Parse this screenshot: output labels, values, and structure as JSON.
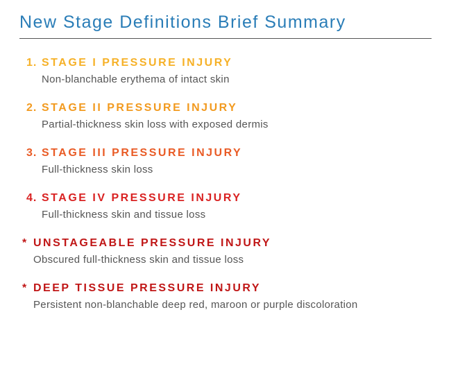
{
  "title": "New Stage Definitions Brief Summary",
  "title_color": "#2a7db7",
  "hr_color": "#555555",
  "desc_color": "#555555",
  "items": [
    {
      "marker": "1.",
      "title": "STAGE I PRESSURE INJURY",
      "color": "#f6b128",
      "desc": "Non-blanchable erythema of intact skin",
      "special": false
    },
    {
      "marker": "2.",
      "title": "STAGE II PRESSURE INJURY",
      "color": "#f29a1f",
      "desc": "Partial-thickness skin loss with exposed dermis",
      "special": false
    },
    {
      "marker": "3.",
      "title": "STAGE III PRESSURE INJURY",
      "color": "#e95b25",
      "desc": "Full-thickness skin loss",
      "special": false
    },
    {
      "marker": "4.",
      "title": "STAGE IV PRESSURE INJURY",
      "color": "#d92222",
      "desc": "Full-thickness skin and tissue loss",
      "special": false
    },
    {
      "marker": "*",
      "title": "UNSTAGEABLE PRESSURE INJURY",
      "color": "#c01616",
      "desc": "Obscured full-thickness skin and tissue loss",
      "special": true
    },
    {
      "marker": "*",
      "title": "DEEP TISSUE PRESSURE INJURY",
      "color": "#c01616",
      "desc": "Persistent non-blanchable deep red, maroon or purple discoloration",
      "special": true
    }
  ]
}
